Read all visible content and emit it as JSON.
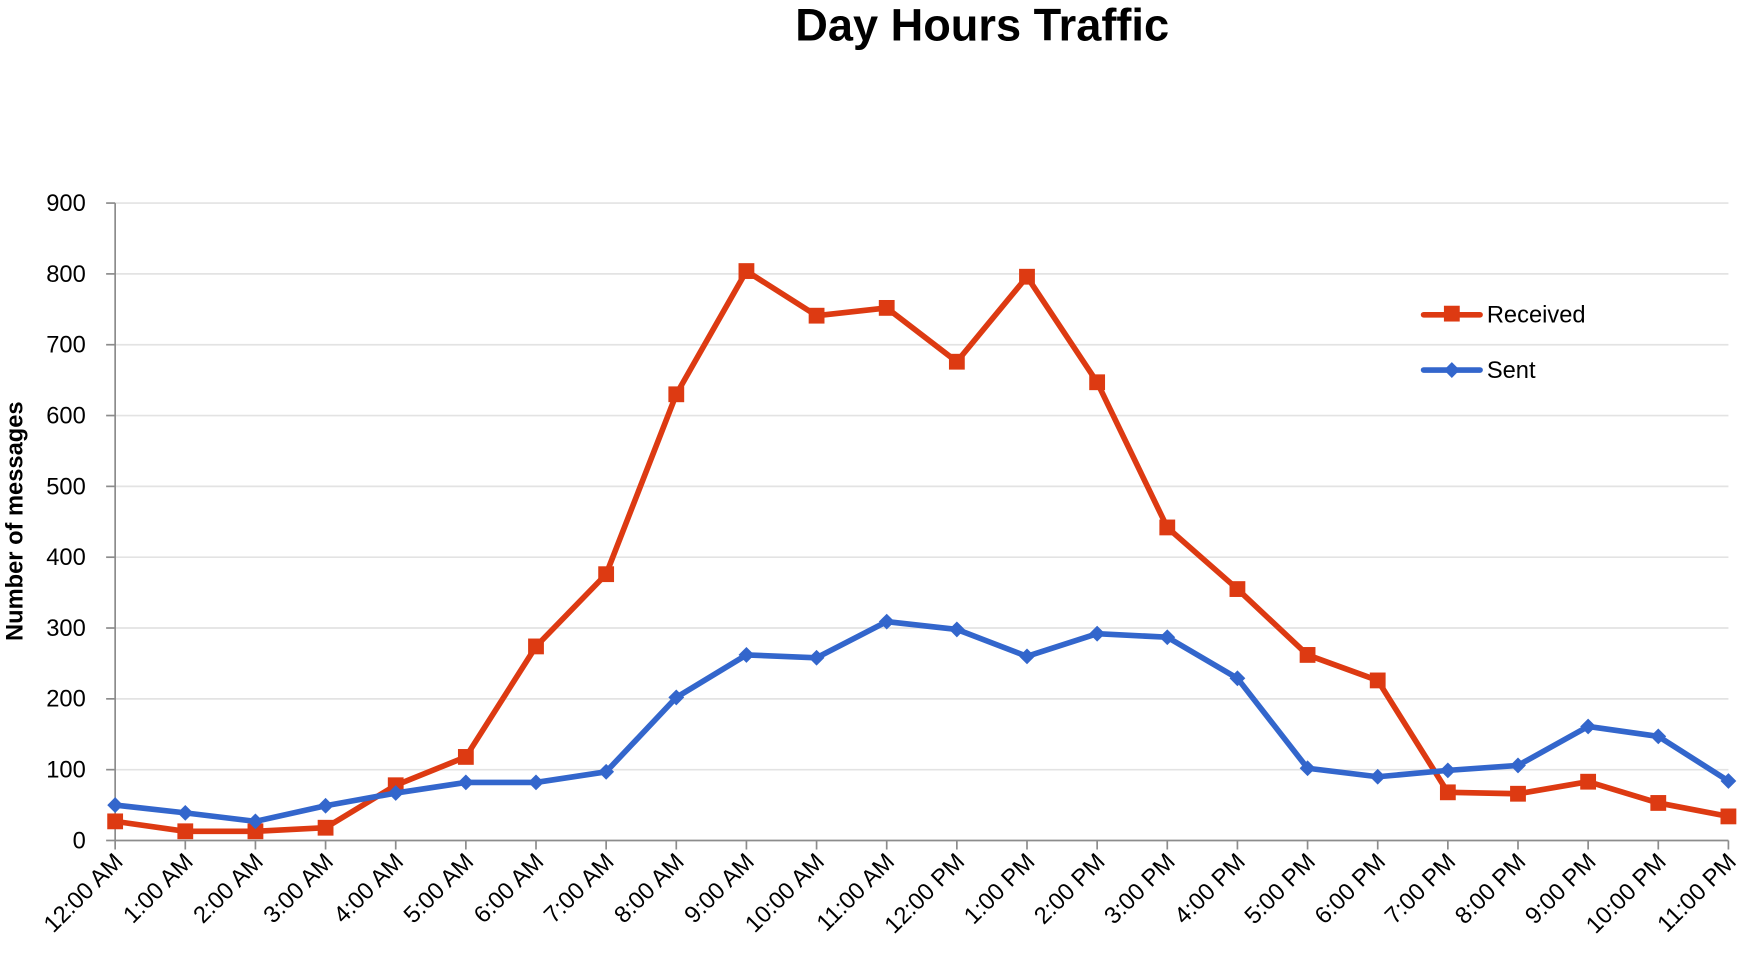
{
  "chart_data": {
    "type": "line",
    "title": "Day Hours Traffic",
    "xlabel": "",
    "ylabel": "Number of messages",
    "ylim": [
      0,
      900
    ],
    "yticks": [
      0,
      100,
      200,
      300,
      400,
      500,
      600,
      700,
      800,
      900
    ],
    "grid": true,
    "legend_position": "upper right (inside plot)",
    "categories": [
      "12:00 AM",
      "1:00 AM",
      "2:00 AM",
      "3:00 AM",
      "4:00 AM",
      "5:00 AM",
      "6:00 AM",
      "7:00 AM",
      "8:00 AM",
      "9:00 AM",
      "10:00 AM",
      "11:00 AM",
      "12:00 PM",
      "1:00 PM",
      "2:00 PM",
      "3:00 PM",
      "4:00 PM",
      "5:00 PM",
      "6:00 PM",
      "7:00 PM",
      "8:00 PM",
      "9:00 PM",
      "10:00 PM",
      "11:00 PM"
    ],
    "series": [
      {
        "name": "Received",
        "color": "#DD3A12",
        "marker": "square",
        "values": [
          27,
          13,
          13,
          18,
          78,
          118,
          274,
          376,
          630,
          804,
          741,
          752,
          676,
          796,
          647,
          442,
          355,
          262,
          226,
          68,
          66,
          83,
          53,
          34
        ]
      },
      {
        "name": "Sent",
        "color": "#3366CC",
        "marker": "diamond",
        "values": [
          50,
          39,
          27,
          49,
          67,
          82,
          82,
          97,
          202,
          262,
          258,
          309,
          298,
          260,
          292,
          287,
          229,
          102,
          90,
          99,
          106,
          161,
          147,
          84
        ]
      }
    ]
  },
  "colors": {
    "received": "#DD3A12",
    "sent": "#3366CC",
    "grid": "#E3E3E3",
    "axis": "#8C8C8C"
  }
}
